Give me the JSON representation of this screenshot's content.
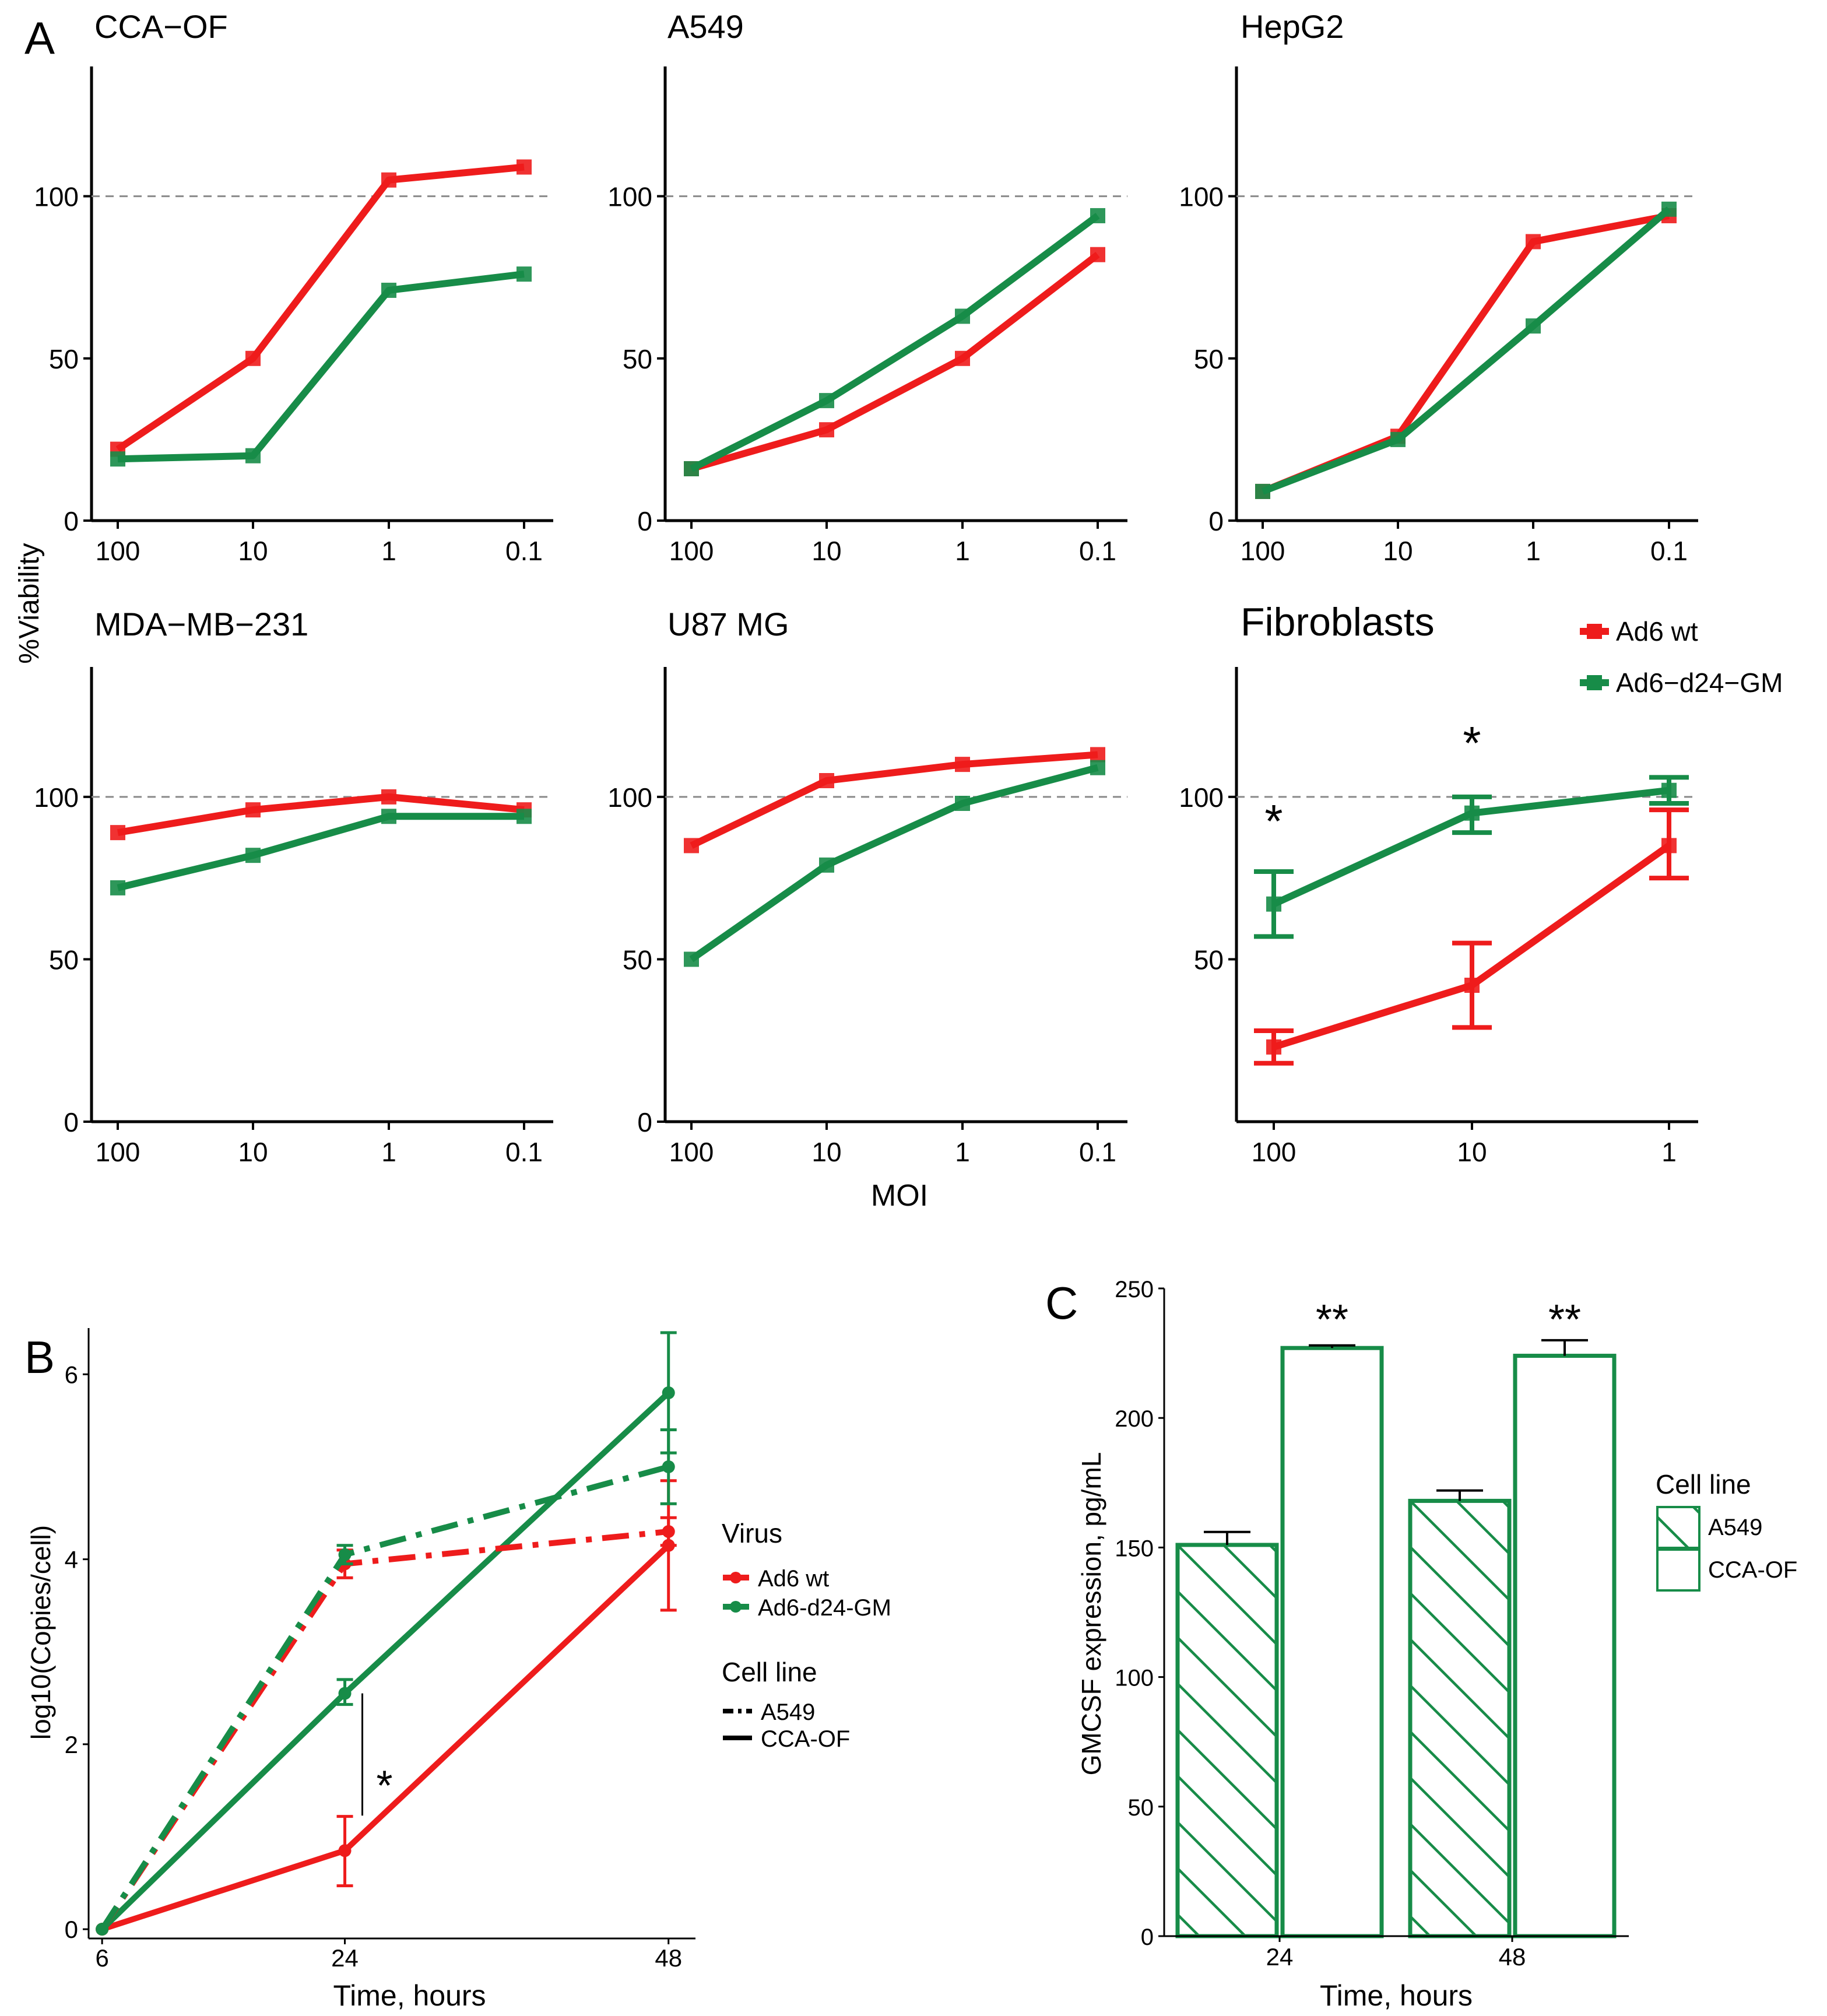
{
  "panel_labels": {
    "a": "A",
    "b": "B",
    "c": "C"
  },
  "colors": {
    "ad6wt": "#ee1c1c",
    "ad6gm": "#178c48",
    "axis": "#000000",
    "ref": "#8a8a8a"
  },
  "panel_a": {
    "y_label": "%Viability",
    "x_label": "MOI",
    "legend": {
      "items": [
        {
          "label": "Ad6 wt",
          "color": "#ee1c1c"
        },
        {
          "label": "Ad6−d24−GM",
          "color": "#178c48"
        }
      ]
    }
  },
  "chart_data": [
    {
      "id": "cca-of",
      "type": "line",
      "title": "CCA−OF",
      "categories": [
        "100",
        "10",
        "1",
        "0.1"
      ],
      "ylim": [
        0,
        140
      ],
      "yticks": [
        "0",
        "50",
        "100"
      ],
      "reference_line": 100,
      "series": [
        {
          "name": "Ad6 wt",
          "values": [
            22,
            50,
            105,
            109
          ]
        },
        {
          "name": "Ad6−d24−GM",
          "values": [
            19,
            20,
            71,
            76
          ]
        }
      ]
    },
    {
      "id": "a549",
      "type": "line",
      "title": "A549",
      "categories": [
        "100",
        "10",
        "1",
        "0.1"
      ],
      "ylim": [
        0,
        140
      ],
      "yticks": [
        "0",
        "50",
        "100"
      ],
      "reference_line": 100,
      "series": [
        {
          "name": "Ad6 wt",
          "values": [
            16,
            28,
            50,
            82
          ]
        },
        {
          "name": "Ad6−d24−GM",
          "values": [
            16,
            37,
            63,
            94
          ]
        }
      ]
    },
    {
      "id": "hepg2",
      "type": "line",
      "title": "HepG2",
      "categories": [
        "100",
        "10",
        "1",
        "0.1"
      ],
      "ylim": [
        0,
        140
      ],
      "yticks": [
        "0",
        "50",
        "100"
      ],
      "reference_line": 100,
      "series": [
        {
          "name": "Ad6 wt",
          "values": [
            9,
            26,
            86,
            94
          ]
        },
        {
          "name": "Ad6−d24−GM",
          "values": [
            9,
            25,
            60,
            96
          ]
        }
      ]
    },
    {
      "id": "mda-mb-231",
      "type": "line",
      "title": "MDA−MB−231",
      "categories": [
        "100",
        "10",
        "1",
        "0.1"
      ],
      "ylim": [
        0,
        140
      ],
      "yticks": [
        "0",
        "50",
        "100"
      ],
      "reference_line": 100,
      "series": [
        {
          "name": "Ad6 wt",
          "values": [
            89,
            96,
            100,
            96
          ]
        },
        {
          "name": "Ad6−d24−GM",
          "values": [
            72,
            82,
            94,
            94
          ]
        }
      ]
    },
    {
      "id": "u87-mg",
      "type": "line",
      "title": "U87 MG",
      "categories": [
        "100",
        "10",
        "1",
        "0.1"
      ],
      "ylim": [
        0,
        140
      ],
      "yticks": [
        "0",
        "50",
        "100"
      ],
      "reference_line": 100,
      "series": [
        {
          "name": "Ad6 wt",
          "values": [
            85,
            105,
            110,
            113
          ]
        },
        {
          "name": "Ad6−d24−GM",
          "values": [
            50,
            79,
            98,
            109
          ]
        }
      ]
    },
    {
      "id": "fibroblasts",
      "type": "line",
      "title": "Fibroblasts",
      "categories": [
        "100",
        "10",
        "1"
      ],
      "ylim": [
        0,
        140
      ],
      "yticks": [
        "50",
        "100"
      ],
      "reference_line": 100,
      "series": [
        {
          "name": "Ad6 wt",
          "values": [
            23,
            42,
            85
          ],
          "err_low": [
            18,
            29,
            75
          ],
          "err_high": [
            28,
            55,
            96
          ]
        },
        {
          "name": "Ad6−d24−GM",
          "values": [
            67,
            95,
            102
          ],
          "err_low": [
            57,
            89,
            98
          ],
          "err_high": [
            77,
            100,
            106
          ]
        }
      ],
      "annotations": [
        {
          "text": "*",
          "category": "100",
          "y": 93
        },
        {
          "text": "*",
          "category": "10",
          "y": 117
        }
      ]
    },
    {
      "id": "replication",
      "type": "line",
      "title": "",
      "xlabel": "Time, hours",
      "ylabel": "log10(Copies/cell)",
      "x": [
        6,
        24,
        48
      ],
      "xlim": [
        5,
        50
      ],
      "ylim": [
        -0.1,
        6.5
      ],
      "xticks": [
        "6",
        "24",
        "48"
      ],
      "yticks": [
        "0",
        "2",
        "4",
        "6"
      ],
      "series": [
        {
          "name": "Ad6 wt",
          "cell_line": "A549",
          "values": [
            0,
            3.95,
            4.3
          ],
          "err_low": [
            0,
            3.8,
            4.15
          ],
          "err_high": [
            0,
            4.1,
            4.45
          ]
        },
        {
          "name": "Ad6−d24−GM",
          "cell_line": "A549",
          "values": [
            0,
            4.05,
            5.0
          ],
          "err_low": [
            0,
            3.95,
            4.6
          ],
          "err_high": [
            0,
            4.15,
            5.4
          ]
        },
        {
          "name": "Ad6 wt",
          "cell_line": "CCA-OF",
          "values": [
            0,
            0.85,
            4.15
          ],
          "err_low": [
            0,
            0.47,
            3.45
          ],
          "err_high": [
            0,
            1.22,
            4.85
          ]
        },
        {
          "name": "Ad6−d24−GM",
          "cell_line": "CCA-OF",
          "values": [
            0,
            2.55,
            5.8
          ],
          "err_low": [
            0,
            2.43,
            5.15
          ],
          "err_high": [
            0,
            2.7,
            6.45
          ]
        }
      ],
      "annotation": "*",
      "legend": {
        "virus_title": "Virus",
        "virus_items": [
          {
            "label": "Ad6 wt",
            "color": "#ee1c1c"
          },
          {
            "label": "Ad6-d24-GM",
            "color": "#178c48"
          }
        ],
        "cell_title": "Cell line",
        "cell_items": [
          {
            "label": "A549",
            "style": "dashed"
          },
          {
            "label": "CCA-OF",
            "style": "solid"
          }
        ]
      }
    },
    {
      "id": "gmcsf",
      "type": "bar",
      "title": "",
      "xlabel": "Time, hours",
      "ylabel": "GMCSF expression, pg/mL",
      "categories": [
        "24",
        "48"
      ],
      "ylim": [
        0,
        250
      ],
      "yticks": [
        "0",
        "50",
        "100",
        "150",
        "200",
        "250"
      ],
      "series": [
        {
          "name": "A549",
          "fill": "hatched",
          "values": [
            151,
            168
          ],
          "err": [
            5,
            4
          ]
        },
        {
          "name": "CCA-OF",
          "fill": "empty",
          "values": [
            227,
            224
          ],
          "err": [
            1,
            6
          ]
        }
      ],
      "annotations": [
        "**",
        "**"
      ],
      "legend": {
        "title": "Cell line",
        "items": [
          {
            "label": "A549"
          },
          {
            "label": "CCA-OF"
          }
        ]
      }
    }
  ]
}
